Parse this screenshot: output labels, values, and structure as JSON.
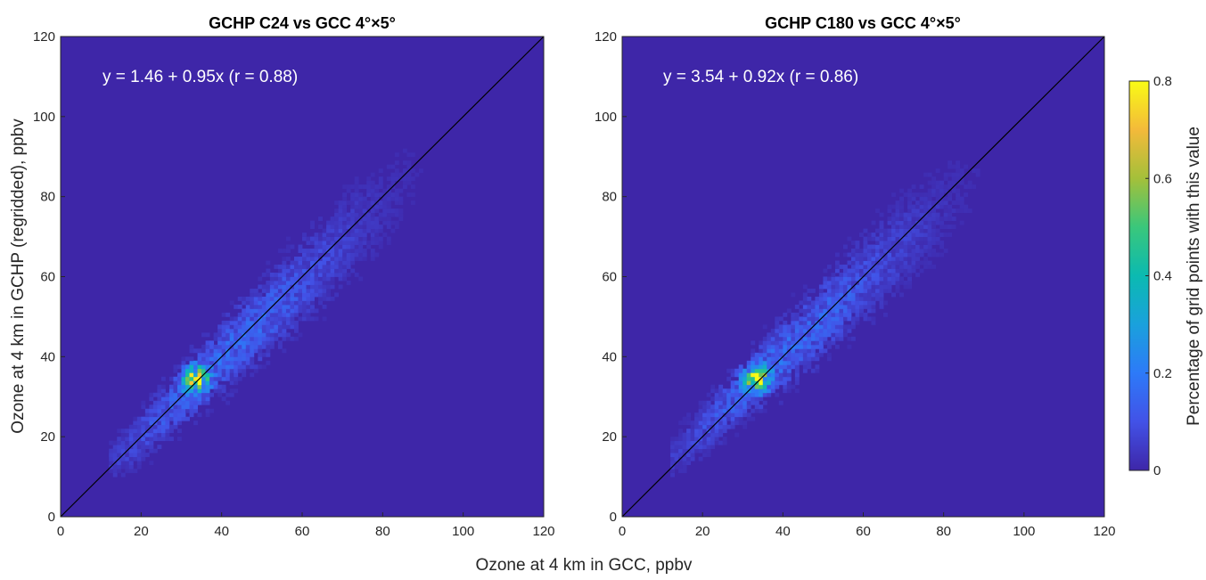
{
  "figure": {
    "shared_xlabel": "Ozone at 4 km in GCC, ppbv",
    "shared_ylabel": "Ozone at 4 km in GCHP (regridded), ppbv",
    "background_color": "#3E26A8"
  },
  "colorbar": {
    "label": "Percentage of grid points with this value",
    "range": [
      0,
      0.8
    ],
    "ticks": [
      "0",
      "0.2",
      "0.4",
      "0.6",
      "0.8"
    ],
    "colormap": [
      "#3E26A8",
      "#4252E7",
      "#2D7AF8",
      "#1AA1DC",
      "#0BBAB1",
      "#3AC77B",
      "#A4C03A",
      "#F3BA3A",
      "#F9FB15"
    ]
  },
  "chart_data": [
    {
      "type": "heatmap",
      "title": "GCHP C24 vs GCC 4°×5°",
      "xlabel": "Ozone at 4 km in GCC, ppbv",
      "ylabel": "Ozone at 4 km in GCHP (regridded), ppbv",
      "xlim": [
        0,
        120
      ],
      "ylim": [
        0,
        120
      ],
      "xticks": [
        "0",
        "20",
        "40",
        "60",
        "80",
        "100",
        "120"
      ],
      "yticks": [
        "0",
        "20",
        "40",
        "60",
        "80",
        "100",
        "120"
      ],
      "annotation": "y = 1.46 + 0.95x (r = 0.88)",
      "fit": {
        "intercept": 1.46,
        "slope": 0.95,
        "r": 0.88
      },
      "one_to_one_line": true,
      "density_peak": {
        "x": 33,
        "y": 34,
        "value": 0.8
      }
    },
    {
      "type": "heatmap",
      "title": "GCHP C180 vs GCC 4°×5°",
      "xlabel": "Ozone at 4 km in GCC, ppbv",
      "ylabel": "",
      "xlim": [
        0,
        120
      ],
      "ylim": [
        0,
        120
      ],
      "xticks": [
        "0",
        "20",
        "40",
        "60",
        "80",
        "100",
        "120"
      ],
      "yticks": [
        "0",
        "20",
        "40",
        "60",
        "80",
        "100",
        "120"
      ],
      "annotation": "y = 3.54 + 0.92x (r = 0.86)",
      "fit": {
        "intercept": 3.54,
        "slope": 0.92,
        "r": 0.86
      },
      "one_to_one_line": true,
      "density_peak": {
        "x": 33,
        "y": 34,
        "value": 0.8
      }
    }
  ]
}
